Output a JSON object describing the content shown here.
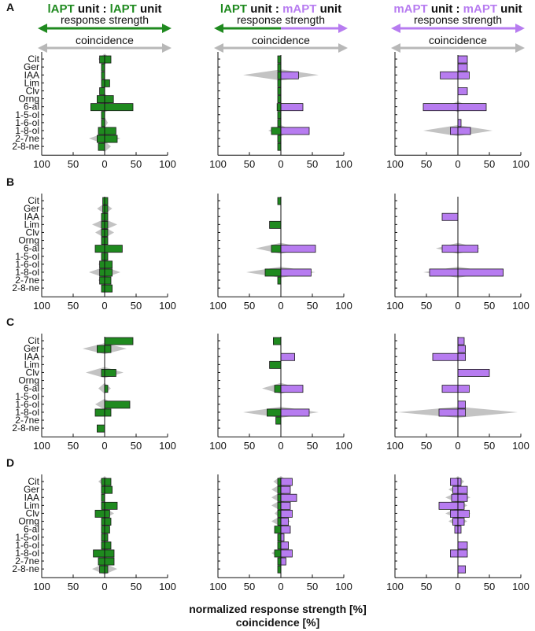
{
  "figure": {
    "x_axis_label_line1": "normalized response strength [%]",
    "x_axis_label_line2": "coincidence [%]",
    "colors": {
      "green": "#1f8a1f",
      "purple": "#b77cf0",
      "gray": "#b8b8b8",
      "dark_purple": "#3b2a55"
    }
  },
  "headers": [
    {
      "title_parts": [
        {
          "text": "lAPT",
          "color": "green",
          "bold": true
        },
        {
          "text": " unit : ",
          "color": "black",
          "bold": true
        },
        {
          "text": "lAPT",
          "color": "green",
          "bold": true
        },
        {
          "text": " unit",
          "color": "black",
          "bold": true
        }
      ],
      "arrow_left_color": "green",
      "arrow_right_color": "green",
      "response_label": "response strength",
      "coincidence_label": "coincidence"
    },
    {
      "title_parts": [
        {
          "text": "lAPT",
          "color": "green",
          "bold": true
        },
        {
          "text": " unit : ",
          "color": "black",
          "bold": true
        },
        {
          "text": "mAPT",
          "color": "purple",
          "bold": true
        },
        {
          "text": " unit",
          "color": "black",
          "bold": true
        }
      ],
      "arrow_left_color": "green",
      "arrow_right_color": "purple",
      "response_label": "response strength",
      "coincidence_label": "coincidence"
    },
    {
      "title_parts": [
        {
          "text": "mAPT",
          "color": "purple",
          "bold": true
        },
        {
          "text": " unit : ",
          "color": "black",
          "bold": true
        },
        {
          "text": "mAPT",
          "color": "purple",
          "bold": true
        },
        {
          "text": " unit",
          "color": "black",
          "bold": true
        }
      ],
      "arrow_left_color": "purple",
      "arrow_right_color": "purple",
      "response_label": "response strength",
      "coincidence_label": "coincidence"
    }
  ],
  "chart_data": {
    "type": "bar",
    "orientation": "horizontal",
    "categories": [
      "Cit",
      "Ger",
      "IAA",
      "Lim",
      "Clv",
      "Orng",
      "6-al",
      "1-5-ol",
      "1-6-ol",
      "1-8-ol",
      "2-7ne",
      "2-8-ne"
    ],
    "xlim": [
      -100,
      100
    ],
    "x_tick_labels": [
      "100",
      "50",
      "0",
      "50",
      "100"
    ],
    "xlabel": "normalized response strength [%] / coincidence [%]",
    "panels": [
      {
        "row": "A",
        "column": 1,
        "unit_left": "lAPT",
        "unit_right": "lAPT",
        "left": [
          -8,
          -5,
          -5,
          -5,
          -8,
          -12,
          -22,
          -5,
          -5,
          -10,
          -12,
          -10
        ],
        "right": [
          10,
          0,
          0,
          8,
          0,
          14,
          45,
          0,
          0,
          18,
          20,
          0
        ],
        "coincidence": [
          10,
          0,
          0,
          0,
          0,
          8,
          20,
          0,
          5,
          5,
          25,
          10
        ]
      },
      {
        "row": "A",
        "column": 2,
        "unit_left": "lAPT",
        "unit_right": "mAPT",
        "left": [
          -5,
          -5,
          -5,
          -5,
          -5,
          -5,
          -6,
          -5,
          -5,
          -15,
          -5,
          -5
        ],
        "right": [
          0,
          0,
          28,
          0,
          0,
          0,
          35,
          0,
          0,
          45,
          0,
          0
        ],
        "coincidence": [
          0,
          0,
          60,
          0,
          0,
          0,
          0,
          0,
          0,
          20,
          0,
          0
        ]
      },
      {
        "row": "A",
        "column": 3,
        "unit_left": "mAPT",
        "unit_right": "mAPT",
        "left": [
          0,
          0,
          -28,
          0,
          0,
          0,
          -55,
          0,
          0,
          -12,
          0,
          0
        ],
        "right": [
          15,
          15,
          18,
          0,
          15,
          0,
          45,
          0,
          5,
          20,
          0,
          0
        ],
        "coincidence": [
          0,
          0,
          0,
          0,
          0,
          0,
          18,
          0,
          0,
          55,
          0,
          0
        ]
      },
      {
        "row": "B",
        "column": 1,
        "unit_left": "lAPT",
        "unit_right": "lAPT",
        "left": [
          -3,
          -3,
          -5,
          -5,
          -5,
          -5,
          -15,
          -5,
          -8,
          -8,
          -8,
          -5
        ],
        "right": [
          5,
          5,
          5,
          5,
          5,
          5,
          28,
          5,
          12,
          12,
          10,
          12
        ],
        "coincidence": [
          0,
          12,
          0,
          20,
          15,
          0,
          0,
          0,
          10,
          25,
          10,
          0
        ]
      },
      {
        "row": "B",
        "column": 2,
        "unit_left": "lAPT",
        "unit_right": "mAPT",
        "left": [
          -5,
          0,
          0,
          -18,
          0,
          0,
          -15,
          0,
          0,
          -25,
          -5,
          0
        ],
        "right": [
          0,
          0,
          0,
          0,
          0,
          0,
          55,
          0,
          0,
          48,
          0,
          0
        ],
        "coincidence": [
          0,
          0,
          0,
          0,
          0,
          0,
          40,
          0,
          0,
          55,
          0,
          0
        ]
      },
      {
        "row": "B",
        "column": 3,
        "unit_left": "mAPT",
        "unit_right": "mAPT",
        "left": [
          0,
          0,
          -25,
          0,
          0,
          0,
          -25,
          0,
          0,
          -45,
          0,
          0
        ],
        "right": [
          0,
          0,
          0,
          0,
          0,
          0,
          32,
          0,
          0,
          72,
          0,
          0
        ],
        "coincidence": [
          0,
          0,
          0,
          0,
          0,
          0,
          35,
          0,
          0,
          55,
          0,
          0
        ]
      },
      {
        "row": "C",
        "column": 1,
        "unit_left": "lAPT",
        "unit_right": "lAPT",
        "left": [
          0,
          -12,
          0,
          0,
          -5,
          0,
          0,
          0,
          0,
          -15,
          0,
          -12
        ],
        "right": [
          45,
          10,
          0,
          0,
          18,
          0,
          5,
          0,
          40,
          10,
          0,
          0
        ],
        "coincidence": [
          0,
          35,
          0,
          0,
          30,
          0,
          10,
          0,
          15,
          0,
          0,
          0
        ]
      },
      {
        "row": "C",
        "column": 2,
        "unit_left": "lAPT",
        "unit_right": "mAPT",
        "left": [
          -12,
          0,
          0,
          -18,
          0,
          0,
          -10,
          0,
          0,
          -22,
          -8,
          0
        ],
        "right": [
          0,
          0,
          22,
          0,
          0,
          0,
          35,
          0,
          0,
          45,
          0,
          0
        ],
        "coincidence": [
          0,
          0,
          0,
          0,
          0,
          0,
          30,
          0,
          0,
          60,
          0,
          0
        ]
      },
      {
        "row": "C",
        "column": 3,
        "unit_left": "mAPT",
        "unit_right": "mAPT",
        "left": [
          0,
          0,
          -40,
          0,
          0,
          0,
          -25,
          0,
          0,
          -30,
          0,
          0
        ],
        "right": [
          10,
          12,
          12,
          0,
          50,
          0,
          18,
          0,
          12,
          12,
          0,
          0
        ],
        "coincidence": [
          0,
          0,
          0,
          0,
          0,
          0,
          0,
          0,
          0,
          95,
          0,
          0
        ]
      },
      {
        "row": "D",
        "column": 1,
        "unit_left": "lAPT",
        "unit_right": "lAPT",
        "left": [
          -5,
          -5,
          -5,
          -5,
          -15,
          -5,
          -5,
          -5,
          -5,
          -18,
          -10,
          -8
        ],
        "right": [
          10,
          12,
          0,
          20,
          8,
          10,
          8,
          5,
          10,
          15,
          15,
          5
        ],
        "coincidence": [
          10,
          0,
          0,
          0,
          15,
          0,
          0,
          0,
          0,
          15,
          0,
          20
        ]
      },
      {
        "row": "D",
        "column": 2,
        "unit_left": "lAPT",
        "unit_right": "mAPT",
        "left": [
          -5,
          -5,
          -5,
          -5,
          -5,
          -5,
          -10,
          -5,
          -5,
          -10,
          -5,
          -5
        ],
        "right": [
          18,
          15,
          25,
          15,
          18,
          12,
          15,
          5,
          12,
          18,
          8,
          0
        ],
        "coincidence": [
          12,
          15,
          15,
          15,
          10,
          15,
          10,
          0,
          0,
          15,
          0,
          0
        ]
      },
      {
        "row": "D",
        "column": 3,
        "unit_left": "mAPT",
        "unit_right": "mAPT",
        "left": [
          -12,
          -8,
          -10,
          -30,
          -12,
          -8,
          -5,
          0,
          0,
          -12,
          0,
          0
        ],
        "right": [
          5,
          15,
          15,
          10,
          18,
          10,
          5,
          0,
          15,
          15,
          0,
          12
        ],
        "coincidence": [
          10,
          15,
          20,
          15,
          20,
          15,
          0,
          0,
          0,
          0,
          0,
          0
        ]
      }
    ]
  },
  "row_labels": [
    "A",
    "B",
    "C",
    "D"
  ]
}
